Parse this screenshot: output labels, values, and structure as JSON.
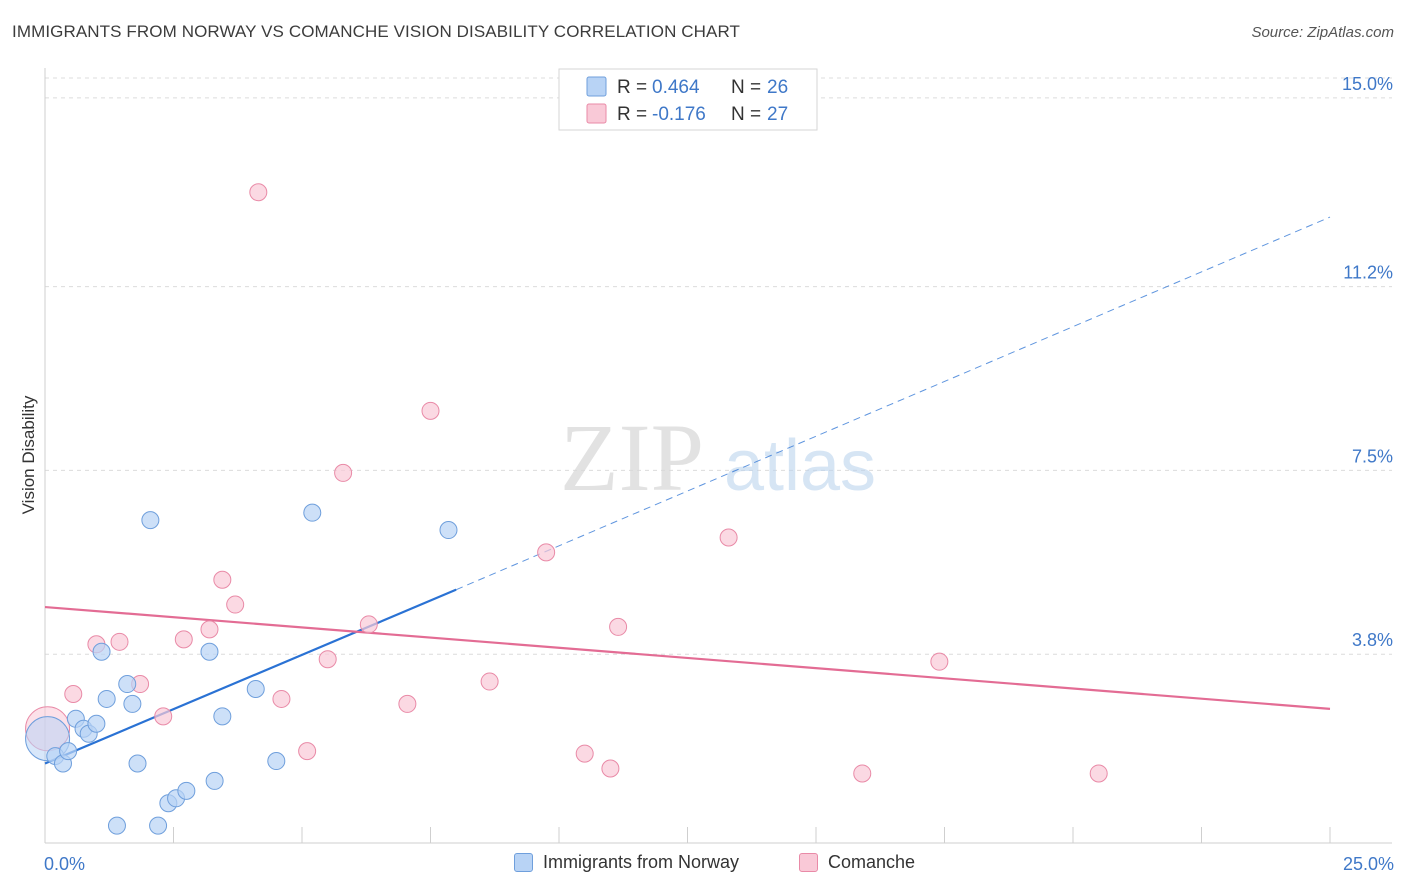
{
  "header": {
    "title": "IMMIGRANTS FROM NORWAY VS COMANCHE VISION DISABILITY CORRELATION CHART",
    "source": "Source: ZipAtlas.com"
  },
  "watermark": {
    "zip": "ZIP",
    "atlas": "atlas"
  },
  "colors": {
    "norway_fill": "#b8d3f5",
    "norway_stroke": "#6f9fdc",
    "norway_line": "#2a72d4",
    "comanche_fill": "#f9c9d7",
    "comanche_stroke": "#e98aa7",
    "comanche_line": "#e36c94",
    "tick_label": "#3f78c8",
    "grid": "#dcdcdc"
  },
  "chart_data": {
    "type": "scatter",
    "title": "IMMIGRANTS FROM NORWAY VS COMANCHE VISION DISABILITY CORRELATION CHART",
    "xlabel": "",
    "ylabel": "Vision Disability",
    "xlim": [
      0,
      25
    ],
    "ylim": [
      0,
      15.4
    ],
    "x_tick_labels": [
      {
        "value": 0,
        "label": "0.0%"
      },
      {
        "value": 25,
        "label": "25.0%"
      }
    ],
    "y_tick_labels": [
      {
        "value": 3.8,
        "label": "3.8%"
      },
      {
        "value": 7.5,
        "label": "7.5%"
      },
      {
        "value": 11.2,
        "label": "11.2%"
      },
      {
        "value": 15.0,
        "label": "15.0%"
      }
    ],
    "grid": true,
    "legend_position": "top-center",
    "stats": [
      {
        "r_label": "R =",
        "r_value": "0.464",
        "n_label": "N =",
        "n_value": "26"
      },
      {
        "r_label": "R =",
        "r_value": "-0.176",
        "n_label": "N =",
        "n_value": "27"
      }
    ],
    "series": [
      {
        "name": "Immigrants from Norway",
        "color": "#6f9fdc",
        "points": [
          [
            0.05,
            2.1,
            3
          ],
          [
            0.2,
            1.75,
            1
          ],
          [
            0.35,
            1.6,
            1
          ],
          [
            0.45,
            1.85,
            1
          ],
          [
            0.6,
            2.5,
            1
          ],
          [
            0.75,
            2.3,
            1
          ],
          [
            0.85,
            2.2,
            1
          ],
          [
            1.0,
            2.4,
            1
          ],
          [
            1.1,
            3.85,
            1
          ],
          [
            1.2,
            2.9,
            1
          ],
          [
            1.4,
            0.35,
            1
          ],
          [
            1.6,
            3.2,
            1
          ],
          [
            1.7,
            2.8,
            1
          ],
          [
            1.8,
            1.6,
            1
          ],
          [
            2.05,
            6.5,
            1
          ],
          [
            2.2,
            0.35,
            1
          ],
          [
            2.4,
            0.8,
            1
          ],
          [
            2.55,
            0.9,
            1
          ],
          [
            2.75,
            1.05,
            1
          ],
          [
            3.2,
            3.85,
            1
          ],
          [
            3.3,
            1.25,
            1
          ],
          [
            3.45,
            2.55,
            1
          ],
          [
            4.1,
            3.1,
            1
          ],
          [
            4.5,
            1.65,
            1
          ],
          [
            5.2,
            6.65,
            1
          ],
          [
            7.85,
            6.3,
            1
          ]
        ],
        "trend": {
          "x0": 0,
          "y0": 1.6,
          "x1": 8.0,
          "y1": 5.1,
          "x_dash_end": 25.0,
          "y_dash_end": 12.6
        }
      },
      {
        "name": "Comanche",
        "color": "#e98aa7",
        "points": [
          [
            0.05,
            2.3,
            3
          ],
          [
            0.55,
            3.0,
            1
          ],
          [
            1.0,
            4.0,
            1
          ],
          [
            1.45,
            4.05,
            1
          ],
          [
            1.85,
            3.2,
            1
          ],
          [
            2.3,
            2.55,
            1
          ],
          [
            2.7,
            4.1,
            1
          ],
          [
            3.2,
            4.3,
            1
          ],
          [
            3.45,
            5.3,
            1
          ],
          [
            3.7,
            4.8,
            1
          ],
          [
            4.15,
            13.1,
            1
          ],
          [
            4.6,
            2.9,
            1
          ],
          [
            5.1,
            1.85,
            1
          ],
          [
            5.5,
            3.7,
            1
          ],
          [
            5.8,
            7.45,
            1
          ],
          [
            6.3,
            4.4,
            1
          ],
          [
            7.05,
            2.8,
            1
          ],
          [
            7.5,
            8.7,
            1
          ],
          [
            8.65,
            3.25,
            1
          ],
          [
            9.75,
            5.85,
            1
          ],
          [
            10.5,
            1.8,
            1
          ],
          [
            11.0,
            1.5,
            1
          ],
          [
            11.15,
            4.35,
            1
          ],
          [
            13.3,
            6.15,
            1
          ],
          [
            15.9,
            1.4,
            1
          ],
          [
            17.4,
            3.65,
            1
          ],
          [
            20.5,
            1.4,
            1
          ]
        ],
        "trend": {
          "x0": 0,
          "y0": 4.75,
          "x1": 25.0,
          "y1": 2.7
        }
      }
    ]
  }
}
